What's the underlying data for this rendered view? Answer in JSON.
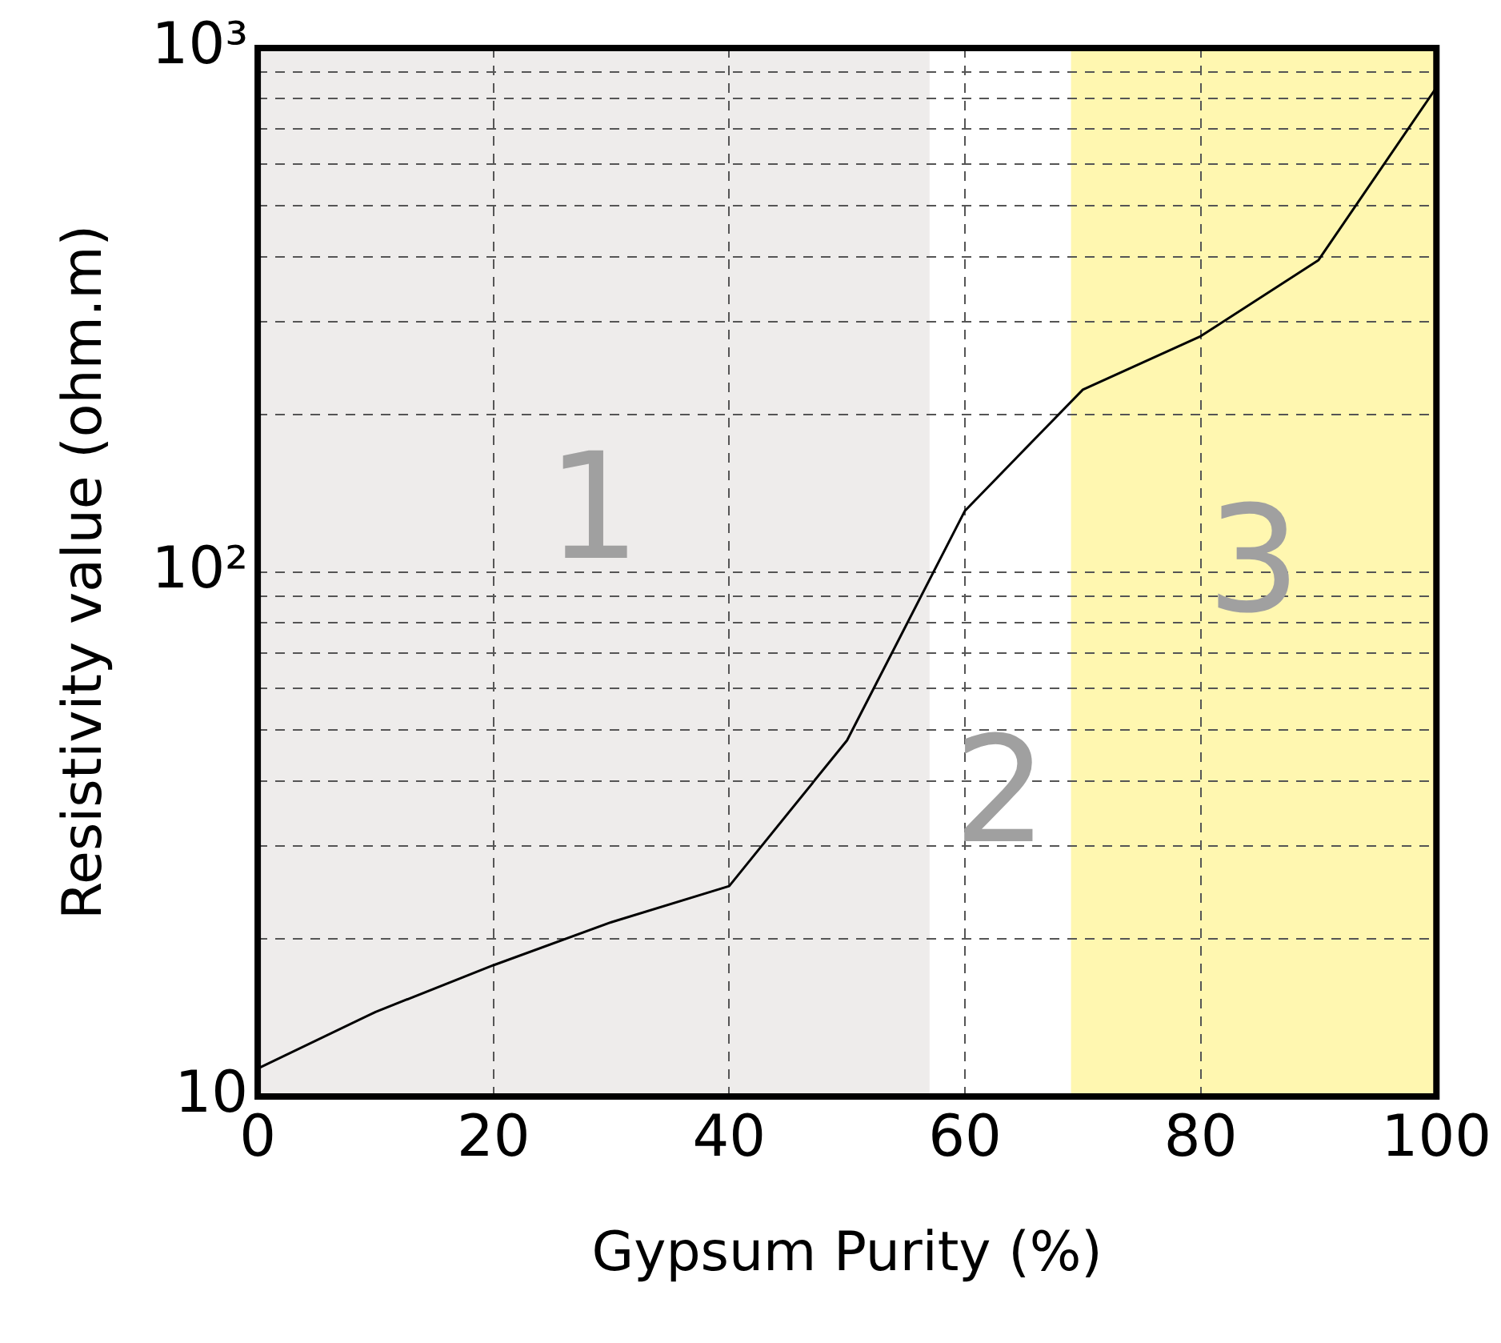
{
  "chart_data": {
    "type": "line",
    "xlabel": "Gypsum Purity (%)",
    "ylabel": "Resistivity value (ohm.m)",
    "x": [
      0,
      10,
      20,
      30,
      40,
      50,
      60,
      70,
      80,
      90,
      100
    ],
    "series": [
      {
        "color": "#000000",
        "values": [
          11.3,
          14.5,
          17.8,
          21.5,
          25.2,
          47.8,
          131,
          223,
          282,
          394,
          841
        ]
      }
    ],
    "xlim": [
      0,
      100
    ],
    "xticks": [
      0,
      20,
      40,
      60,
      80,
      100
    ],
    "ylim": [
      10,
      1000
    ],
    "yticks": [
      10,
      {
        "value": 20,
        "label": null
      },
      {
        "value": 30,
        "label": null
      },
      {
        "value": 40,
        "label": null
      },
      {
        "value": 50,
        "label": null
      },
      {
        "value": 60,
        "label": null
      },
      {
        "value": 70,
        "label": null
      },
      {
        "value": 80,
        "label": null
      },
      {
        "value": 90,
        "label": null
      },
      {
        "value": 100,
        "label": "10²"
      },
      {
        "value": 200,
        "label": null
      },
      {
        "value": 300,
        "label": null
      },
      {
        "value": 400,
        "label": null
      },
      {
        "value": 500,
        "label": null
      },
      {
        "value": 600,
        "label": null
      },
      {
        "value": 700,
        "label": null
      },
      {
        "value": 800,
        "label": null
      },
      {
        "value": 900,
        "label": null
      },
      {
        "value": 1000,
        "label": "10³"
      }
    ],
    "log": "y",
    "grid": true,
    "legend": false,
    "marker": "none",
    "line_style": "solid",
    "bands": [
      {
        "axis": "x",
        "from": 0,
        "to": 57,
        "label": "1",
        "color": "#eeeceb"
      },
      {
        "axis": "x",
        "from": 69,
        "to": 100,
        "label": "3",
        "color": "#fff7b0"
      }
    ],
    "annotations": [
      "2"
    ]
  }
}
